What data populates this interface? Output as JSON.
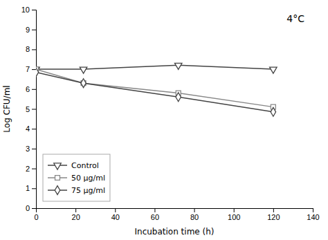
{
  "chart_data": {
    "type": "line",
    "annotation": "4°C",
    "xlabel": "Incubation time (h)",
    "ylabel": "Log CFU/ml",
    "xlim": [
      0,
      140
    ],
    "ylim": [
      0,
      10
    ],
    "xticks": [
      0,
      20,
      40,
      60,
      80,
      100,
      120,
      140
    ],
    "yticks": [
      0,
      1,
      2,
      3,
      4,
      5,
      6,
      7,
      8,
      9,
      10
    ],
    "x": [
      0,
      24,
      72,
      120
    ],
    "series": [
      {
        "name": "Control",
        "color": "#444444",
        "marker": "triangle-down",
        "line_style": "solid",
        "values": [
          7.0,
          7.0,
          7.2,
          7.0
        ]
      },
      {
        "name": "50 μg/ml",
        "color": "#888888",
        "marker": "square",
        "line_style": "solid",
        "values": [
          7.0,
          6.3,
          5.8,
          5.1
        ]
      },
      {
        "name": "75 μg/ml",
        "color": "#444444",
        "marker": "diamond",
        "line_style": "solid",
        "values": [
          6.85,
          6.3,
          5.6,
          4.85
        ]
      }
    ],
    "legend": "lower left",
    "grid": false
  }
}
